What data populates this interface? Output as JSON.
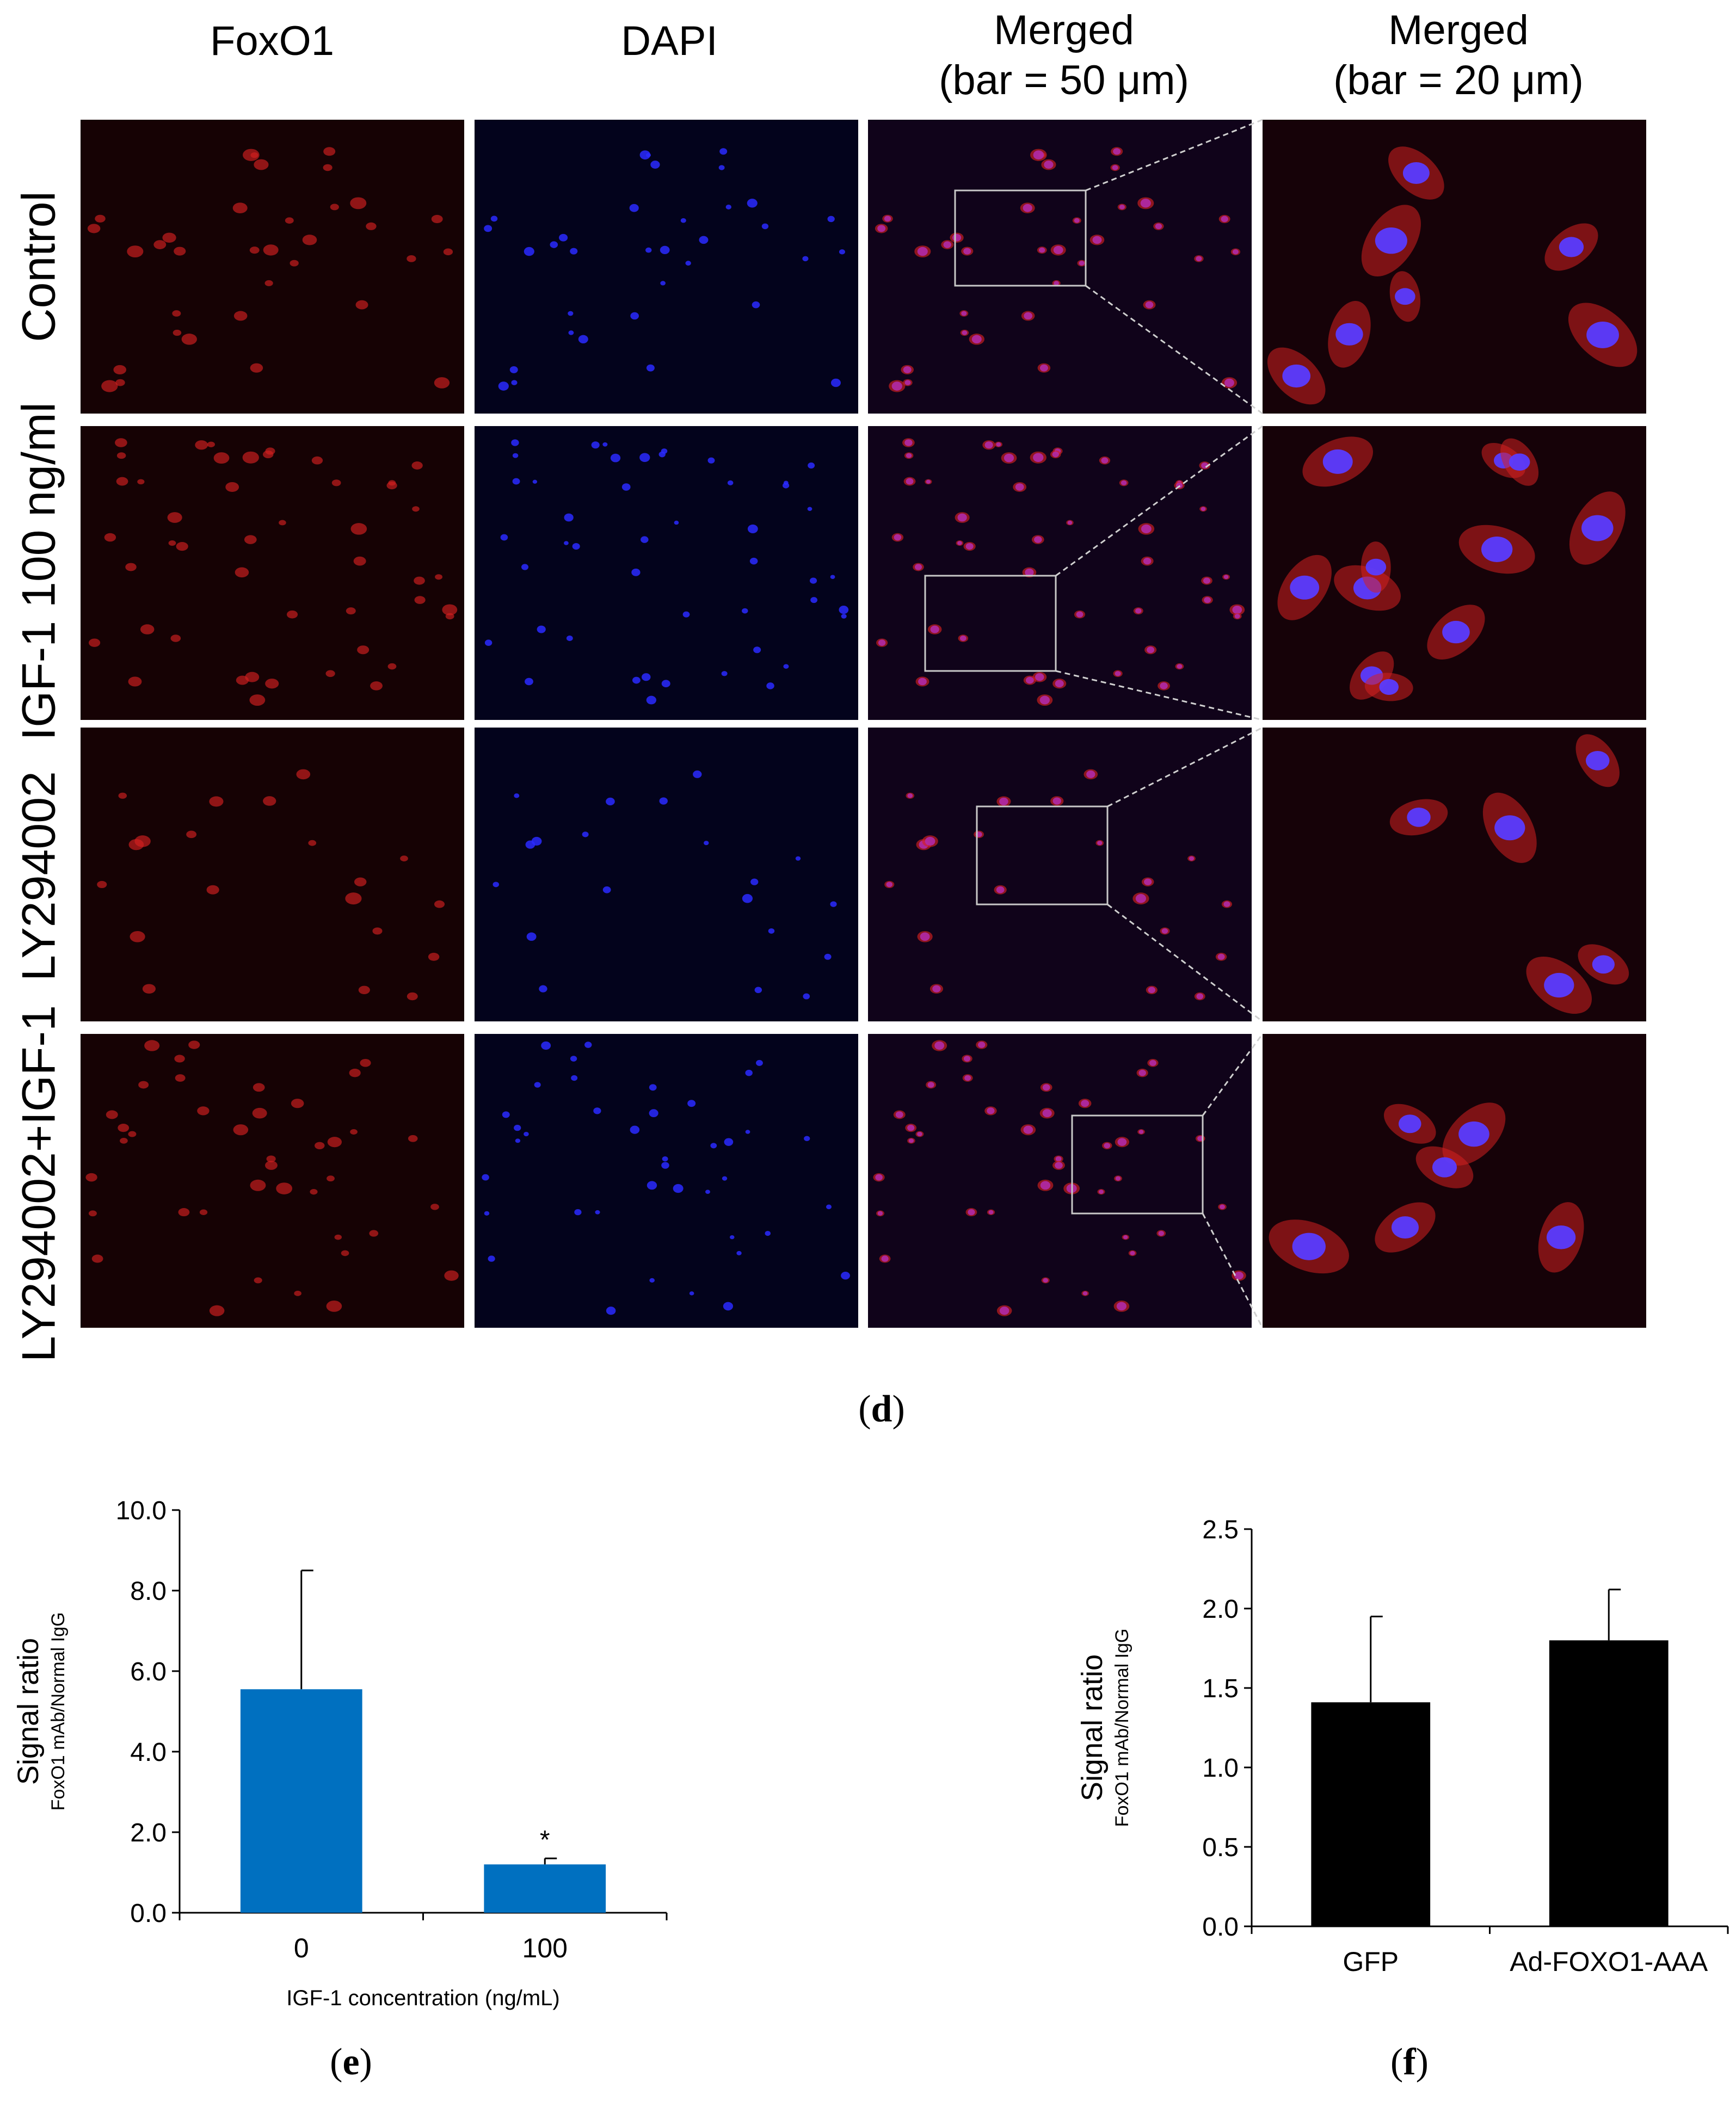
{
  "microscopy": {
    "column_headers": [
      {
        "line1": "FoxO1",
        "line2": ""
      },
      {
        "line1": "DAPI",
        "line2": ""
      },
      {
        "line1": "Merged",
        "line2": "(bar = 50 μm)"
      },
      {
        "line1": "Merged",
        "line2": "(bar = 20 μm)"
      }
    ],
    "row_labels": [
      "Control",
      "IGF-1 100 ng/ml",
      "LY294002",
      "LY294002+IGF-1"
    ],
    "channel_colors": {
      "foxo1": "#d42020",
      "dapi": "#2a2aff",
      "merged": "#b02aa8"
    },
    "panel_label": "d"
  },
  "panel_labels": {
    "e": "e",
    "f": "f"
  },
  "chart_data": [
    {
      "type": "bar",
      "panel": "e",
      "categories": [
        "0",
        "100"
      ],
      "series": [
        {
          "values": [
            5.55,
            1.2
          ],
          "error": [
            2.95,
            0.15
          ],
          "color": "#0070c0"
        }
      ],
      "ylim": [
        0,
        10
      ],
      "yticks": [
        "0.0",
        "2.0",
        "4.0",
        "6.0",
        "8.0",
        "10.0"
      ],
      "ylabel": "Signal ratio",
      "ylabel_sub": "FoxO1 mAb/Normal  IgG",
      "xlabel": "IGF-1 concentration   (ng/mL)",
      "annotations": [
        {
          "category": "100",
          "text": "*"
        }
      ]
    },
    {
      "type": "bar",
      "panel": "f",
      "categories": [
        "GFP",
        "Ad-FOXO1-AAA"
      ],
      "series": [
        {
          "values": [
            1.41,
            1.8
          ],
          "error": [
            0.54,
            0.32
          ],
          "color": "#000000"
        }
      ],
      "ylim": [
        0,
        2.5
      ],
      "yticks": [
        "0.0",
        "0.5",
        "1.0",
        "1.5",
        "2.0",
        "2.5"
      ],
      "ylabel": "Signal ratio",
      "ylabel_sub": "FoxO1 mAb/Normal  IgG",
      "xlabel": ""
    }
  ]
}
